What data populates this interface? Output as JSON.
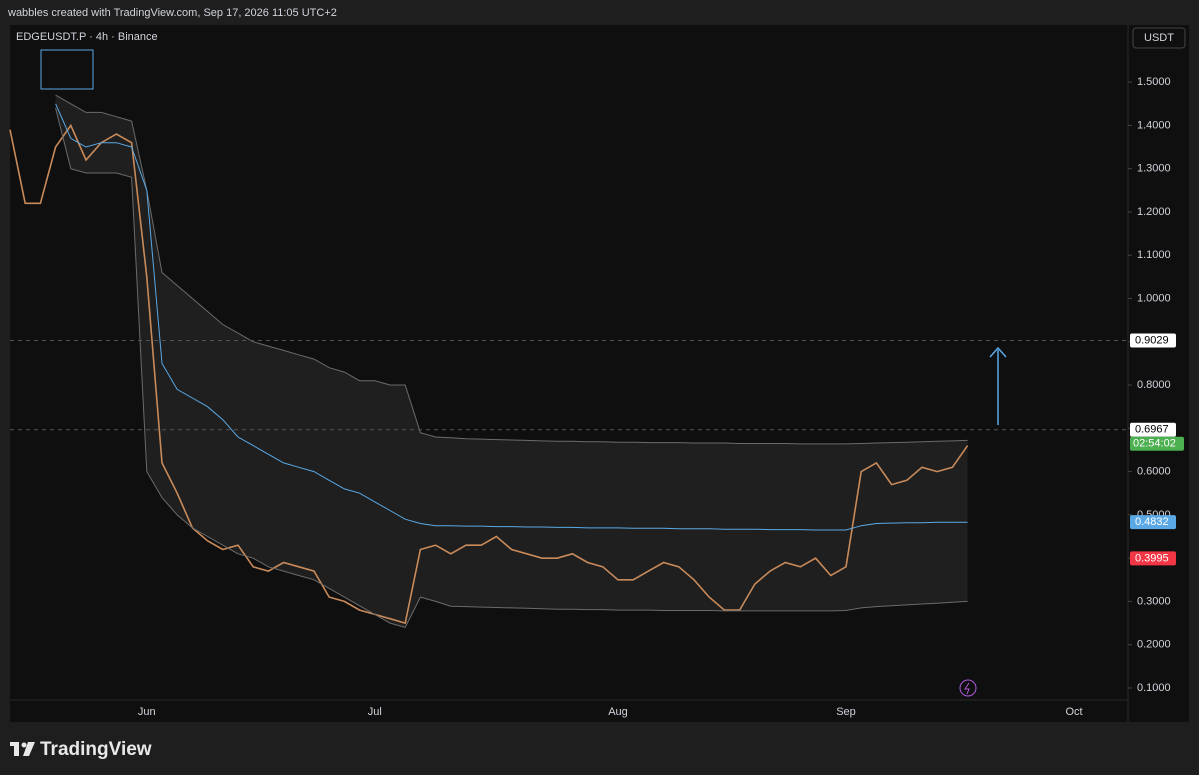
{
  "header": {
    "text": "wabbles created with TradingView.com, Sep 17, 2026 11:05 UTC+2"
  },
  "footer": {
    "brand": "TradingView"
  },
  "chart_data": {
    "type": "line",
    "title": "EDGEUSDT.P · 4h · Binance",
    "y_label": "USDT",
    "categories": [
      null,
      null,
      null,
      null,
      null,
      null,
      null,
      null,
      null,
      "Jun",
      null,
      null,
      null,
      null,
      null,
      null,
      null,
      null,
      null,
      null,
      null,
      null,
      null,
      null,
      "Jul",
      null,
      null,
      null,
      null,
      null,
      null,
      null,
      null,
      null,
      null,
      null,
      null,
      null,
      null,
      null,
      "Aug",
      null,
      null,
      null,
      null,
      null,
      null,
      null,
      null,
      null,
      null,
      null,
      null,
      null,
      null,
      "Sep",
      null,
      null,
      null,
      null,
      null,
      null,
      null,
      null,
      null,
      null,
      null,
      null,
      null,
      null,
      "Oct",
      null,
      null,
      null,
      null
    ],
    "series": [
      {
        "color": "#c98a5a",
        "values": [
          1.39,
          1.22,
          1.22,
          1.35,
          1.4,
          1.32,
          1.36,
          1.38,
          1.36,
          1.05,
          0.62,
          0.55,
          0.47,
          0.44,
          0.42,
          0.43,
          0.38,
          0.37,
          0.39,
          0.38,
          0.37,
          0.31,
          0.3,
          0.28,
          0.27,
          0.26,
          0.25,
          0.42,
          0.43,
          0.41,
          0.43,
          0.43,
          0.45,
          0.42,
          0.41,
          0.4,
          0.4,
          0.41,
          0.39,
          0.38,
          0.35,
          0.35,
          0.37,
          0.39,
          0.38,
          0.35,
          0.31,
          0.28,
          0.28,
          0.34,
          0.37,
          0.39,
          0.38,
          0.4,
          0.36,
          0.38,
          0.6,
          0.62,
          0.57,
          0.58,
          0.61,
          0.6,
          0.61,
          0.66,
          null,
          null,
          null,
          null,
          null,
          null,
          null,
          null,
          null,
          null,
          null
        ]
      },
      {
        "color": "#6b6b6b",
        "values": [
          null,
          null,
          null,
          1.47,
          1.45,
          1.43,
          1.43,
          1.42,
          1.41,
          1.25,
          1.06,
          1.03,
          1.0,
          0.97,
          0.94,
          0.92,
          0.9,
          0.89,
          0.88,
          0.87,
          0.86,
          0.84,
          0.83,
          0.81,
          0.81,
          0.8,
          0.8,
          0.69,
          0.68,
          0.678,
          0.676,
          0.675,
          0.674,
          0.673,
          0.672,
          0.671,
          0.67,
          0.67,
          0.669,
          0.669,
          0.668,
          0.668,
          0.667,
          0.667,
          0.667,
          0.666,
          0.666,
          0.666,
          0.665,
          0.665,
          0.665,
          0.665,
          0.664,
          0.664,
          0.664,
          0.664,
          0.665,
          0.666,
          0.667,
          0.668,
          0.669,
          0.67,
          0.671,
          0.672,
          null,
          null,
          null,
          null,
          null,
          null,
          null,
          null,
          null,
          null,
          null
        ]
      },
      {
        "color": "#5aa9e6",
        "values": [
          null,
          null,
          null,
          1.45,
          1.37,
          1.35,
          1.36,
          1.36,
          1.35,
          1.25,
          0.85,
          0.79,
          0.77,
          0.75,
          0.72,
          0.68,
          0.66,
          0.64,
          0.62,
          0.61,
          0.6,
          0.58,
          0.56,
          0.55,
          0.53,
          0.51,
          0.49,
          0.48,
          0.475,
          0.475,
          0.474,
          0.474,
          0.473,
          0.473,
          0.472,
          0.472,
          0.471,
          0.471,
          0.47,
          0.47,
          0.47,
          0.469,
          0.469,
          0.469,
          0.468,
          0.468,
          0.468,
          0.467,
          0.467,
          0.467,
          0.466,
          0.466,
          0.466,
          0.465,
          0.465,
          0.465,
          0.475,
          0.48,
          0.481,
          0.482,
          0.482,
          0.483,
          0.483,
          0.483,
          null,
          null,
          null,
          null,
          null,
          null,
          null,
          null,
          null,
          null,
          null
        ]
      },
      {
        "color": "#6b6b6b",
        "values": [
          null,
          null,
          null,
          1.44,
          1.3,
          1.29,
          1.29,
          1.29,
          1.28,
          0.6,
          0.54,
          0.5,
          0.47,
          0.45,
          0.43,
          0.41,
          0.4,
          0.38,
          0.37,
          0.36,
          0.35,
          0.33,
          0.31,
          0.29,
          0.27,
          0.25,
          0.24,
          0.31,
          0.3,
          0.289,
          0.288,
          0.287,
          0.286,
          0.285,
          0.284,
          0.283,
          0.282,
          0.282,
          0.281,
          0.281,
          0.28,
          0.28,
          0.28,
          0.279,
          0.279,
          0.279,
          0.279,
          0.278,
          0.278,
          0.278,
          0.278,
          0.278,
          0.278,
          0.278,
          0.278,
          0.279,
          0.285,
          0.288,
          0.29,
          0.292,
          0.294,
          0.296,
          0.298,
          0.3,
          null,
          null,
          null,
          null,
          null,
          null,
          null,
          null,
          null,
          null,
          null
        ]
      }
    ],
    "ylim": [
      0.026,
      1.632
    ],
    "yticks": [
      {
        "value": 0.1,
        "label": "0.1000"
      },
      {
        "value": 0.2,
        "label": "0.2000"
      },
      {
        "value": 0.3,
        "label": "0.3000"
      },
      {
        "value": 0.4,
        "label": "0.4000"
      },
      {
        "value": 0.5,
        "label": "0.5000"
      },
      {
        "value": 0.6,
        "label": "0.6000"
      },
      {
        "value": 0.7,
        "label": "0.7000"
      },
      {
        "value": 0.8,
        "label": "0.8000"
      },
      {
        "value": 0.9,
        "label": "0.9000"
      },
      {
        "value": 1.0,
        "label": "1.0000"
      },
      {
        "value": 1.1,
        "label": "1.1000"
      },
      {
        "value": 1.2,
        "label": "1.2000"
      },
      {
        "value": 1.3,
        "label": "1.3000"
      },
      {
        "value": 1.4,
        "label": "1.4000"
      },
      {
        "value": 1.5,
        "label": "1.5000"
      }
    ],
    "grid": false,
    "price_labels": [
      {
        "value": 0.9029,
        "color": "#ffffff",
        "dashed": true
      },
      {
        "value": 0.6967,
        "color": "#ffffff",
        "dashed": true
      },
      {
        "value": 0.4832,
        "color": "#5aa9e6",
        "dashed": false
      },
      {
        "value": 0.3995,
        "color": "#f23645",
        "dashed": false
      }
    ],
    "countdown": {
      "text": "02:54:02",
      "color": "#4caf50"
    }
  }
}
